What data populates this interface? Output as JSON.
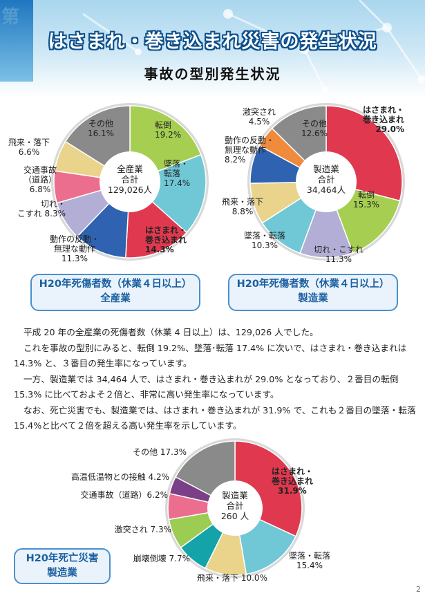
{
  "header": {
    "chapter_char": "第",
    "title": "はさまれ・巻き込まれ災害の発生状況",
    "subtitle": "事故の型別発生状況"
  },
  "captions": {
    "left": [
      "H20年死傷者数（休業４日以上）",
      "全産業"
    ],
    "right": [
      "H20年死傷者数（休業４日以上）",
      "製造業"
    ],
    "bottom": [
      "H20年死亡災害",
      "製造業"
    ]
  },
  "paragraphs": [
    "平成 20 年の全産業の死傷者数（休業 4 日以上）は、129,026 人でした。",
    "これを事故の型別にみると、転倒 19.2%、墜落･転落 17.4% に次いで、はさまれ・巻き込まれは 14.3% と、３番目の発生率になっています。",
    "一方、製造業では 34,464 人で、はさまれ・巻き込まれが 29.0% となっており、２番目の転倒 15.3% に比べておよそ２倍と、非常に高い発生率になっています。",
    "なお、死亡災害でも、製造業では、はさまれ・巻き込まれが 31.9% で、これも２番目の墜落・転落 15.4%と比べて２倍を超える高い発生率を示しています。"
  ],
  "page_number": "2",
  "chart_data": [
    {
      "type": "pie",
      "center_label": [
        "全産業",
        "合計",
        "129,026人"
      ],
      "slices": [
        {
          "label": [
            "転倒",
            "19.2%"
          ],
          "value": 19.2,
          "color": "#a6cf52"
        },
        {
          "label": [
            "墜落・",
            "転落",
            "17.4%"
          ],
          "value": 17.4,
          "color": "#70c8d6"
        },
        {
          "label": [
            "はさまれ・",
            "巻き込まれ",
            "14.3%"
          ],
          "value": 14.3,
          "color": "#e0394f",
          "bold": true
        },
        {
          "label": [
            "動作の反動・",
            "無理な動作",
            "11.3%"
          ],
          "value": 11.3,
          "color": "#2f62b0"
        },
        {
          "label": [
            "切れ・",
            "こすれ 8.3%"
          ],
          "value": 8.3,
          "color": "#b3aed6"
        },
        {
          "label": [
            "交通事故",
            "（道路）",
            "6.8%"
          ],
          "value": 6.8,
          "color": "#ec6e8e"
        },
        {
          "label": [
            "飛来・落下",
            "6.6%"
          ],
          "value": 6.6,
          "color": "#ead48c"
        },
        {
          "label": [
            "その他",
            "16.1%"
          ],
          "value": 16.1,
          "color": "#8a8a8a"
        }
      ]
    },
    {
      "type": "pie",
      "center_label": [
        "製造業",
        "合計",
        "34,464人"
      ],
      "slices": [
        {
          "label": [
            "はさまれ・",
            "巻き込まれ",
            "29.0%"
          ],
          "value": 29.0,
          "color": "#e0394f",
          "bold": true
        },
        {
          "label": [
            "転倒",
            "15.3%"
          ],
          "value": 15.3,
          "color": "#a6cf52"
        },
        {
          "label": [
            "切れ・こすれ",
            "11.3%"
          ],
          "value": 11.3,
          "color": "#b3aed6"
        },
        {
          "label": [
            "墜落・転落",
            "10.3%"
          ],
          "value": 10.3,
          "color": "#70c8d6"
        },
        {
          "label": [
            "飛来・落下",
            "8.8%"
          ],
          "value": 8.8,
          "color": "#ead48c"
        },
        {
          "label": [
            "動作の反動・",
            "無理な動作",
            "8.2%"
          ],
          "value": 8.2,
          "color": "#2f62b0"
        },
        {
          "label": [
            "激突され",
            "4.5%"
          ],
          "value": 4.5,
          "color": "#f08a3c"
        },
        {
          "label": [
            "その他",
            "12.6%"
          ],
          "value": 12.6,
          "color": "#8a8a8a"
        }
      ]
    },
    {
      "type": "pie",
      "center_label": [
        "製造業",
        "合計",
        "260 人"
      ],
      "slices": [
        {
          "label": [
            "はさまれ・",
            "巻き込まれ",
            "31.9%"
          ],
          "value": 31.9,
          "color": "#e0394f",
          "bold": true
        },
        {
          "label": [
            "墜落・転落",
            "15.4%"
          ],
          "value": 15.4,
          "color": "#70c8d6"
        },
        {
          "label": [
            "飛来・落下 10.0%"
          ],
          "value": 10.0,
          "color": "#ead48c"
        },
        {
          "label": [
            "崩壊倒壊 7.7%"
          ],
          "value": 7.7,
          "color": "#14a3a8"
        },
        {
          "label": [
            "激突され 7.3%"
          ],
          "value": 7.3,
          "color": "#9ccc52"
        },
        {
          "label": [
            "交通事故（道路）6.2%"
          ],
          "value": 6.2,
          "color": "#ec6e8e"
        },
        {
          "label": [
            "高温低温物との接触 4.2%"
          ],
          "value": 4.2,
          "color": "#7a3f86"
        },
        {
          "label": [
            "その他 17.3%"
          ],
          "value": 17.3,
          "color": "#8a8a8a"
        }
      ]
    }
  ]
}
